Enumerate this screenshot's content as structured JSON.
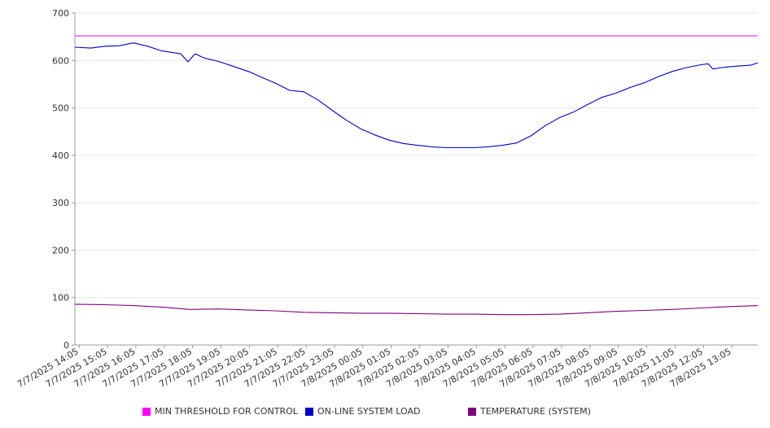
{
  "chart_data": {
    "type": "line",
    "title": "",
    "xlabel": "",
    "ylabel": "",
    "ylim": [
      0,
      700
    ],
    "yticks": [
      0,
      100,
      200,
      300,
      400,
      500,
      600,
      700
    ],
    "xlim": [
      "7/7/2025 13:56",
      "7/8/2025 14:00"
    ],
    "x_tick_labels": [
      "7/7/2025 14:05",
      "7/7/2025 15:05",
      "7/7/2025 16:05",
      "7/7/2025 17:05",
      "7/7/2025 18:05",
      "7/7/2025 19:05",
      "7/7/2025 20:05",
      "7/7/2025 21:05",
      "7/7/2025 22:05",
      "7/7/2025 23:05",
      "7/8/2025 00:05",
      "7/8/2025 01:05",
      "7/8/2025 02:05",
      "7/8/2025 03:05",
      "7/8/2025 04:05",
      "7/8/2025 05:05",
      "7/8/2025 06:05",
      "7/8/2025 07:05",
      "7/8/2025 08:05",
      "7/8/2025 09:05",
      "7/8/2025 10:05",
      "7/8/2025 11:05",
      "7/8/2025 12:05",
      "7/8/2025 13:05"
    ],
    "grid": {
      "horizontal": true,
      "vertical": false
    },
    "legend_position": "bottom",
    "series": [
      {
        "name": "MIN THRESHOLD FOR CONTROL",
        "color": "#ff00ff",
        "x": [
          "7/7/2025 13:56",
          "7/8/2025 14:00"
        ],
        "values": [
          652,
          652
        ]
      },
      {
        "name": "ON-LINE SYSTEM LOAD",
        "color": "#0000cc",
        "x": [
          "7/7/2025 13:56",
          "7/7/2025 14:30",
          "7/7/2025 15:00",
          "7/7/2025 15:30",
          "7/7/2025 16:00",
          "7/7/2025 16:30",
          "7/7/2025 17:00",
          "7/7/2025 17:40",
          "7/7/2025 17:55",
          "7/7/2025 18:10",
          "7/7/2025 18:30",
          "7/7/2025 19:00",
          "7/7/2025 19:30",
          "7/7/2025 20:05",
          "7/7/2025 20:30",
          "7/7/2025 21:00",
          "7/7/2025 21:30",
          "7/7/2025 22:00",
          "7/7/2025 22:30",
          "7/7/2025 23:00",
          "7/7/2025 23:30",
          "7/8/2025 00:00",
          "7/8/2025 00:30",
          "7/8/2025 01:00",
          "7/8/2025 01:30",
          "7/8/2025 02:00",
          "7/8/2025 02:30",
          "7/8/2025 03:00",
          "7/8/2025 03:30",
          "7/8/2025 04:00",
          "7/8/2025 04:30",
          "7/8/2025 05:00",
          "7/8/2025 05:30",
          "7/8/2025 06:00",
          "7/8/2025 06:30",
          "7/8/2025 07:00",
          "7/8/2025 07:30",
          "7/8/2025 08:00",
          "7/8/2025 08:30",
          "7/8/2025 09:00",
          "7/8/2025 09:30",
          "7/8/2025 10:00",
          "7/8/2025 10:30",
          "7/8/2025 11:00",
          "7/8/2025 11:30",
          "7/8/2025 12:00",
          "7/8/2025 12:15",
          "7/8/2025 12:25",
          "7/8/2025 12:45",
          "7/8/2025 13:15",
          "7/8/2025 13:45",
          "7/8/2025 14:00"
        ],
        "values": [
          628,
          626,
          630,
          631,
          637,
          630,
          620,
          614,
          597,
          614,
          605,
          598,
          588,
          576,
          565,
          552,
          537,
          534,
          517,
          495,
          474,
          456,
          443,
          432,
          425,
          421,
          418,
          416,
          416,
          416,
          418,
          421,
          426,
          441,
          462,
          479,
          491,
          507,
          522,
          531,
          543,
          553,
          566,
          577,
          585,
          591,
          593,
          582,
          585,
          588,
          590,
          595
        ]
      },
      {
        "name": "TEMPERATURE (SYSTEM)",
        "color": "#800080",
        "x": [
          "7/7/2025 13:56",
          "7/7/2025 15:00",
          "7/7/2025 16:00",
          "7/7/2025 17:00",
          "7/7/2025 18:00",
          "7/7/2025 19:00",
          "7/7/2025 20:00",
          "7/7/2025 21:00",
          "7/7/2025 22:00",
          "7/7/2025 23:00",
          "7/8/2025 00:00",
          "7/8/2025 01:00",
          "7/8/2025 02:00",
          "7/8/2025 03:00",
          "7/8/2025 04:00",
          "7/8/2025 05:00",
          "7/8/2025 06:00",
          "7/8/2025 07:00",
          "7/8/2025 08:00",
          "7/8/2025 09:00",
          "7/8/2025 10:00",
          "7/8/2025 11:00",
          "7/8/2025 12:00",
          "7/8/2025 13:00",
          "7/8/2025 14:00"
        ],
        "values": [
          86,
          85,
          83,
          80,
          75,
          76,
          74,
          72,
          69,
          68,
          67,
          67,
          66,
          65,
          65,
          64,
          64,
          65,
          68,
          71,
          73,
          75,
          78,
          81,
          83
        ]
      }
    ]
  }
}
